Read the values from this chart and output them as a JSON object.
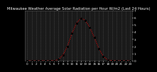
{
  "title": "Milwaukee Weather Average Solar Radiation per Hour W/m2 (Last 24 Hours)",
  "hours": [
    0,
    1,
    2,
    3,
    4,
    5,
    6,
    7,
    8,
    9,
    10,
    11,
    12,
    13,
    14,
    15,
    16,
    17,
    18,
    19,
    20,
    21,
    22,
    23
  ],
  "values": [
    0,
    0,
    0,
    0,
    0,
    0,
    2,
    15,
    80,
    200,
    380,
    520,
    590,
    560,
    460,
    320,
    170,
    60,
    10,
    2,
    0,
    0,
    0,
    0
  ],
  "line_color": "#ff0000",
  "dot_color": "#000000",
  "bg_color": "#000000",
  "plot_bg": "#1a1a1a",
  "grid_color": "#555555",
  "text_color": "#ffffff",
  "ylim": [
    0,
    700
  ],
  "xlim": [
    -0.5,
    23.5
  ],
  "yticks": [
    0,
    100,
    200,
    300,
    400,
    500,
    600,
    700
  ],
  "ytick_labels": [
    "0",
    "1",
    "2",
    "3",
    "4",
    "5",
    "6",
    "7"
  ],
  "title_fontsize": 3.8,
  "tick_fontsize": 3.0
}
